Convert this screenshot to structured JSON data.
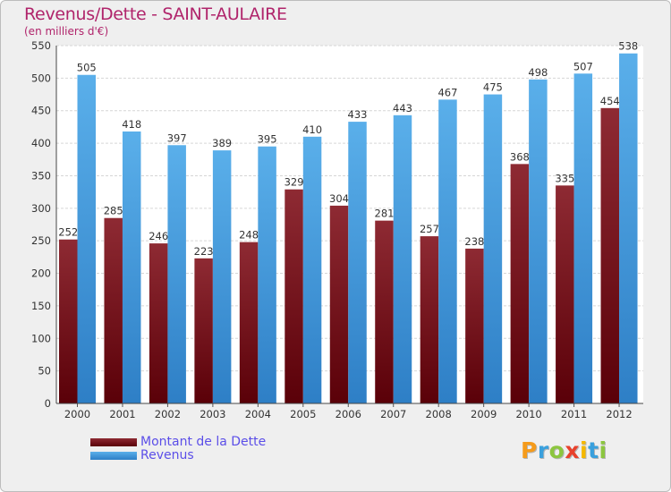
{
  "title": "Revenus/Dette - SAINT-AULAIRE",
  "subtitle": "(en milliers d'€)",
  "logo": {
    "letters": [
      {
        "ch": "P",
        "color": "#f59b1b"
      },
      {
        "ch": "r",
        "color": "#3aa0dd"
      },
      {
        "ch": "o",
        "color": "#8cc63f"
      },
      {
        "ch": "x",
        "color": "#e8412c"
      },
      {
        "ch": "i",
        "color": "#f5b800"
      },
      {
        "ch": "t",
        "color": "#3aa0dd"
      },
      {
        "ch": "i",
        "color": "#8cc63f"
      }
    ]
  },
  "legend": {
    "debt_label": "Montant de la Dette",
    "revenue_label": "Revenus"
  },
  "colors": {
    "debt": "#7a1a24",
    "revenue": "#3b95dc",
    "title": "#b0246b",
    "legend_text": "#5b4ee8"
  },
  "chart_data": {
    "type": "bar",
    "categories": [
      "2000",
      "2001",
      "2002",
      "2003",
      "2004",
      "2005",
      "2006",
      "2007",
      "2008",
      "2009",
      "2010",
      "2011",
      "2012"
    ],
    "series": [
      {
        "name": "Montant de la Dette",
        "values": [
          252,
          285,
          246,
          223,
          248,
          329,
          304,
          281,
          257,
          238,
          368,
          335,
          454
        ]
      },
      {
        "name": "Revenus",
        "values": [
          505,
          418,
          397,
          389,
          395,
          410,
          433,
          443,
          467,
          475,
          498,
          507,
          538
        ]
      }
    ],
    "ylim": [
      0,
      550
    ],
    "yticks": [
      0,
      50,
      100,
      150,
      200,
      250,
      300,
      350,
      400,
      450,
      500,
      550
    ],
    "grid": true,
    "legend_position": "bottom-left"
  }
}
